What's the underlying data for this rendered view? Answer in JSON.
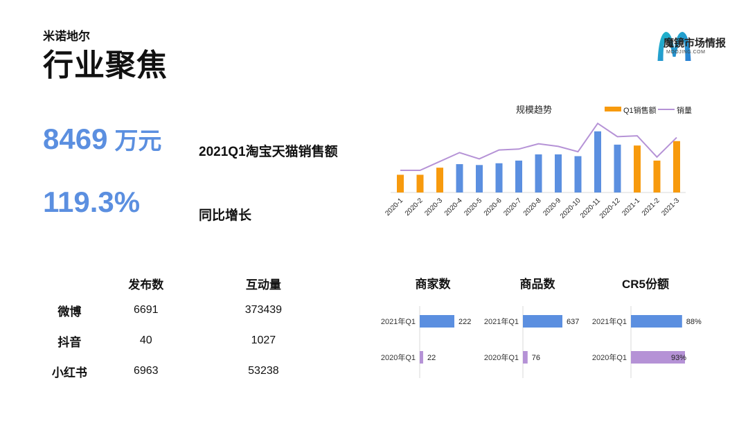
{
  "header": {
    "brand": "米诺地尔",
    "title": "行业聚焦"
  },
  "logo": {
    "cn": "魔镜市场情报",
    "en": "MOOJING.COM",
    "colors": [
      "#1fb8c9",
      "#2a7fd4"
    ]
  },
  "kpis": {
    "sales_value": "8469",
    "sales_unit": "万元",
    "sales_label": "2021Q1淘宝天猫销售额",
    "yoy_value": "119.3%",
    "yoy_label": "同比增长"
  },
  "colors": {
    "accent_blue": "#5b8fe0",
    "q1_orange": "#f79a0d",
    "line_purple": "#b592d6"
  },
  "chart_data": [
    {
      "type": "bar",
      "title": "规模趋势",
      "categories": [
        "2020-1",
        "2020-2",
        "2020-3",
        "2020-4",
        "2020-5",
        "2020-6",
        "2020-7",
        "2020-8",
        "2020-9",
        "2020-10",
        "2020-11",
        "2020-12",
        "2021-1",
        "2021-2",
        "2021-3"
      ],
      "series": [
        {
          "name": "Q1销售额",
          "kind": "bar",
          "values": [
            20,
            20,
            28,
            32,
            31,
            33,
            36,
            43,
            43,
            41,
            69,
            54,
            53,
            36,
            58
          ],
          "highlight_indices": [
            0,
            1,
            2,
            12,
            13,
            14
          ]
        },
        {
          "name": "销量",
          "kind": "line",
          "values": [
            25,
            25,
            35,
            45,
            38,
            48,
            49,
            55,
            52,
            46,
            78,
            63,
            64,
            40,
            62
          ]
        }
      ],
      "legend": "top-right",
      "grid": false
    },
    {
      "type": "bar",
      "title": "商家数",
      "categories": [
        "2021年Q1",
        "2020年Q1"
      ],
      "values": [
        222,
        22
      ],
      "labels": [
        "222",
        "22"
      ]
    },
    {
      "type": "bar",
      "title": "商品数",
      "categories": [
        "2021年Q1",
        "2020年Q1"
      ],
      "values": [
        637,
        76
      ],
      "labels": [
        "637",
        "76"
      ]
    },
    {
      "type": "bar",
      "title": "CR5份额",
      "categories": [
        "2021年Q1",
        "2020年Q1"
      ],
      "values": [
        88,
        93
      ],
      "labels": [
        "88%",
        "93%"
      ]
    }
  ],
  "social_table": {
    "headers": [
      "",
      "发布数",
      "互动量"
    ],
    "rows": [
      {
        "platform": "微博",
        "posts": "6691",
        "interactions": "373439"
      },
      {
        "platform": "抖音",
        "posts": "40",
        "interactions": "1027"
      },
      {
        "platform": "小红书",
        "posts": "6963",
        "interactions": "53238"
      }
    ]
  }
}
